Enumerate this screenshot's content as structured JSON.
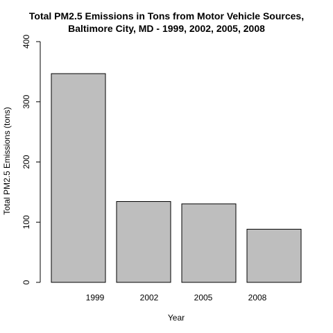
{
  "chart_data": {
    "type": "bar",
    "title_line1": "Total PM2.5 Emissions in Tons from Motor Vehicle Sources,",
    "title_line2": "Baltimore City, MD - 1999, 2002, 2005, 2008",
    "xlabel": "Year",
    "ylabel": "Total PM2.5 Emissions (tons)",
    "categories": [
      "1999",
      "2002",
      "2005",
      "2008"
    ],
    "values": [
      346.8,
      134.3,
      130.4,
      88.3
    ],
    "ylim": [
      0,
      400
    ],
    "yticks": [
      0,
      100,
      200,
      300,
      400
    ],
    "bar_color": "#bebebe",
    "grid": false,
    "legend": "none"
  }
}
